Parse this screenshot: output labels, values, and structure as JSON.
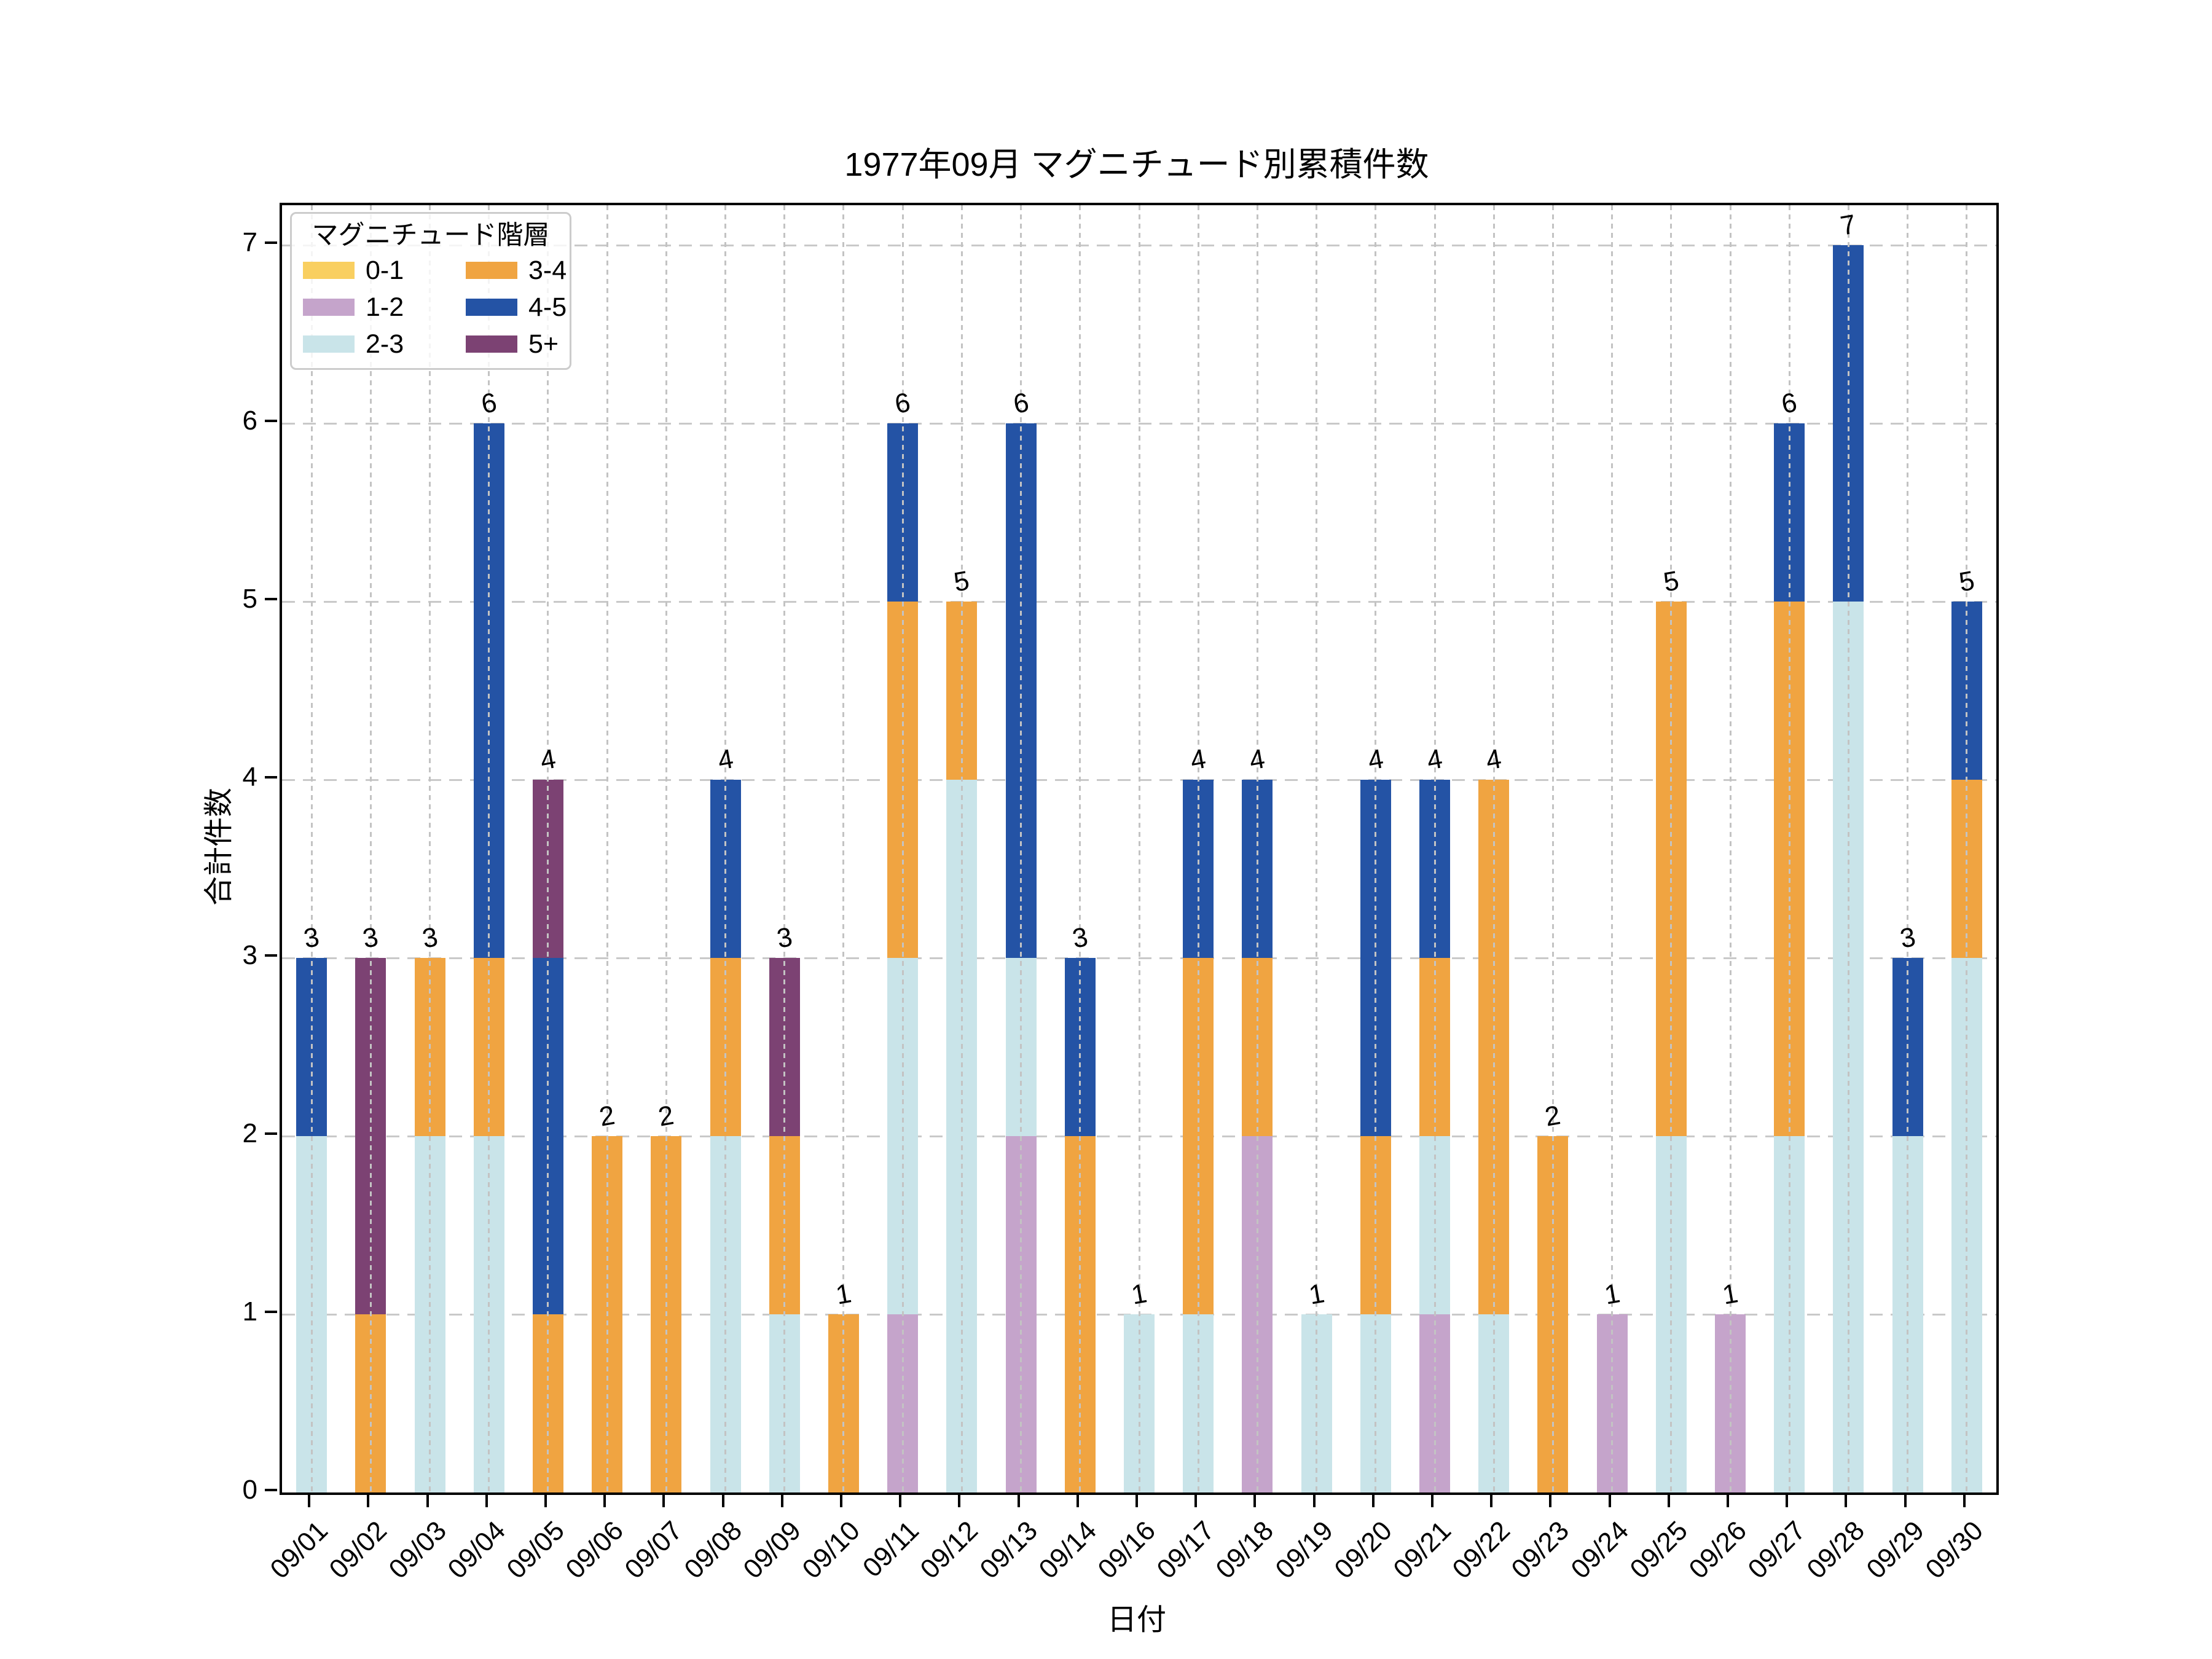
{
  "chart_data": {
    "type": "bar",
    "stacked": true,
    "title": "1977年09月 マグニチュード別累積件数",
    "xlabel": "日付",
    "ylabel": "合計件数",
    "ylim": [
      0,
      7.22
    ],
    "yticks": [
      "0",
      "1",
      "2",
      "3",
      "4",
      "5",
      "6",
      "7"
    ],
    "grid": {
      "x_style": "dashed-over-bars",
      "y_style": "dashed-behind-bars",
      "color": "#c9c9c9"
    },
    "legend": {
      "title": "マグニチュード階層",
      "position": "upper-left",
      "columns": 2
    },
    "categories": [
      "09/01",
      "09/02",
      "09/03",
      "09/04",
      "09/05",
      "09/06",
      "09/07",
      "09/08",
      "09/09",
      "09/10",
      "09/11",
      "09/12",
      "09/13",
      "09/14",
      "09/16",
      "09/17",
      "09/18",
      "09/19",
      "09/20",
      "09/21",
      "09/22",
      "09/23",
      "09/24",
      "09/25",
      "09/26",
      "09/27",
      "09/28",
      "09/29",
      "09/30"
    ],
    "series": [
      {
        "name": "0-1",
        "color": "#F9CF60",
        "values": [
          0,
          0,
          0,
          0,
          0,
          0,
          0,
          0,
          0,
          0,
          0,
          0,
          0,
          0,
          0,
          0,
          0,
          0,
          0,
          0,
          0,
          0,
          0,
          0,
          0,
          0,
          0,
          0,
          0
        ]
      },
      {
        "name": "1-2",
        "color": "#C5A4CB",
        "values": [
          0,
          0,
          0,
          0,
          0,
          0,
          0,
          0,
          0,
          0,
          1,
          0,
          2,
          0,
          0,
          0,
          2,
          0,
          0,
          1,
          0,
          0,
          1,
          0,
          1,
          0,
          0,
          0,
          0
        ]
      },
      {
        "name": "2-3",
        "color": "#C9E4E9",
        "values": [
          2,
          0,
          2,
          2,
          0,
          0,
          0,
          2,
          1,
          0,
          2,
          4,
          1,
          0,
          1,
          1,
          0,
          1,
          1,
          1,
          1,
          0,
          0,
          2,
          0,
          2,
          5,
          2,
          3
        ]
      },
      {
        "name": "3-4",
        "color": "#F0A441",
        "values": [
          0,
          1,
          1,
          1,
          1,
          2,
          2,
          1,
          1,
          1,
          2,
          1,
          0,
          2,
          0,
          2,
          1,
          0,
          1,
          1,
          3,
          2,
          0,
          3,
          0,
          3,
          0,
          0,
          1
        ]
      },
      {
        "name": "4-5",
        "color": "#2453A5",
        "values": [
          1,
          0,
          0,
          3,
          2,
          0,
          0,
          1,
          0,
          0,
          1,
          0,
          3,
          1,
          0,
          1,
          1,
          0,
          2,
          1,
          0,
          0,
          0,
          0,
          0,
          1,
          2,
          1,
          1
        ]
      },
      {
        "name": "5+",
        "color": "#7C4273",
        "values": [
          0,
          2,
          0,
          0,
          1,
          0,
          0,
          0,
          1,
          0,
          0,
          0,
          0,
          0,
          0,
          0,
          0,
          0,
          0,
          0,
          0,
          0,
          0,
          0,
          0,
          0,
          0,
          0,
          0
        ]
      }
    ],
    "bar_total_labels": [
      "3",
      "3",
      "3",
      "6",
      "4",
      "2",
      "2",
      "4",
      "3",
      "1",
      "6",
      "5",
      "6",
      "3",
      "1",
      "4",
      "4",
      "1",
      "4",
      "4",
      "4",
      "2",
      "1",
      "5",
      "1",
      "6",
      "7",
      "3",
      "5"
    ]
  }
}
